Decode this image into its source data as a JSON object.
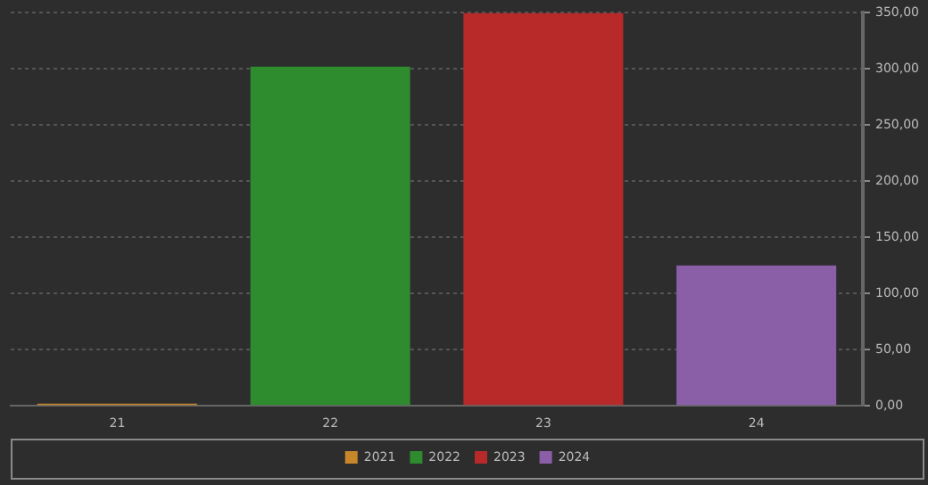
{
  "chart_data": {
    "type": "bar",
    "stacked": true,
    "categories": [
      "21",
      "22",
      "23",
      "24"
    ],
    "series": [
      {
        "name": "2021",
        "color": "#c8862a",
        "values": [
          2,
          null,
          null,
          null
        ]
      },
      {
        "name": "2022",
        "color": "#2e8b2e",
        "values": [
          null,
          302,
          null,
          null
        ]
      },
      {
        "name": "2023",
        "color": "#b82a2a",
        "values": [
          null,
          null,
          350,
          null
        ]
      },
      {
        "name": "2024",
        "color": "#8a5fa8",
        "values": [
          null,
          null,
          null,
          125
        ]
      }
    ],
    "ylim": [
      0,
      350
    ],
    "yticks": [
      {
        "value": 0,
        "label": "0,00"
      },
      {
        "value": 50,
        "label": "50,00"
      },
      {
        "value": 100,
        "label": "100,00"
      },
      {
        "value": 150,
        "label": "150,00"
      },
      {
        "value": 200,
        "label": "200,00"
      },
      {
        "value": 250,
        "label": "250,00"
      },
      {
        "value": 300,
        "label": "300,00"
      },
      {
        "value": 350,
        "label": "350,00"
      }
    ],
    "grid": "y",
    "legend": "bottom"
  }
}
